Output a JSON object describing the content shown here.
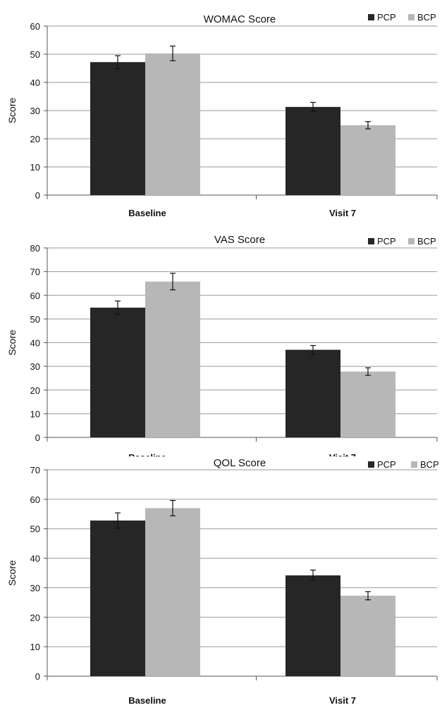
{
  "chart_data": [
    {
      "type": "bar",
      "title": "WOMAC Score",
      "ylabel": "Score",
      "xlabel": "",
      "categories": [
        "Baseline",
        "Visit 7"
      ],
      "ylim": [
        0,
        60
      ],
      "yticks": [
        0,
        10,
        20,
        30,
        40,
        50,
        60
      ],
      "grid": true,
      "legend": "top-right",
      "series": [
        {
          "name": "PCP",
          "color": "#262626",
          "values": [
            47.2,
            31.3
          ],
          "errors": [
            2.3,
            1.6
          ]
        },
        {
          "name": "BCP",
          "color": "#b7b7b7",
          "values": [
            50.3,
            24.8
          ],
          "errors": [
            2.6,
            1.3
          ]
        }
      ]
    },
    {
      "type": "bar",
      "title": "VAS Score",
      "ylabel": "Score",
      "xlabel": "",
      "categories": [
        "Baseline",
        "Visit 7"
      ],
      "ylim": [
        0,
        80
      ],
      "yticks": [
        0,
        10,
        20,
        30,
        40,
        50,
        60,
        70,
        80
      ],
      "grid": true,
      "legend": "top-right",
      "series": [
        {
          "name": "PCP",
          "color": "#262626",
          "values": [
            54.8,
            37.0
          ],
          "errors": [
            2.8,
            1.8
          ]
        },
        {
          "name": "BCP",
          "color": "#b7b7b7",
          "values": [
            65.8,
            27.8
          ],
          "errors": [
            3.5,
            1.6
          ]
        }
      ]
    },
    {
      "type": "bar",
      "title": "QOL Score",
      "ylabel": "Score",
      "xlabel": "",
      "categories": [
        "Baseline",
        "Visit 7"
      ],
      "ylim": [
        0,
        70
      ],
      "yticks": [
        0,
        10,
        20,
        30,
        40,
        50,
        60,
        70
      ],
      "grid": true,
      "legend": "top-right",
      "series": [
        {
          "name": "PCP",
          "color": "#262626",
          "values": [
            52.8,
            34.2
          ],
          "errors": [
            2.6,
            1.8
          ]
        },
        {
          "name": "BCP",
          "color": "#b7b7b7",
          "values": [
            57.0,
            27.3
          ],
          "errors": [
            2.6,
            1.4
          ]
        }
      ]
    }
  ]
}
